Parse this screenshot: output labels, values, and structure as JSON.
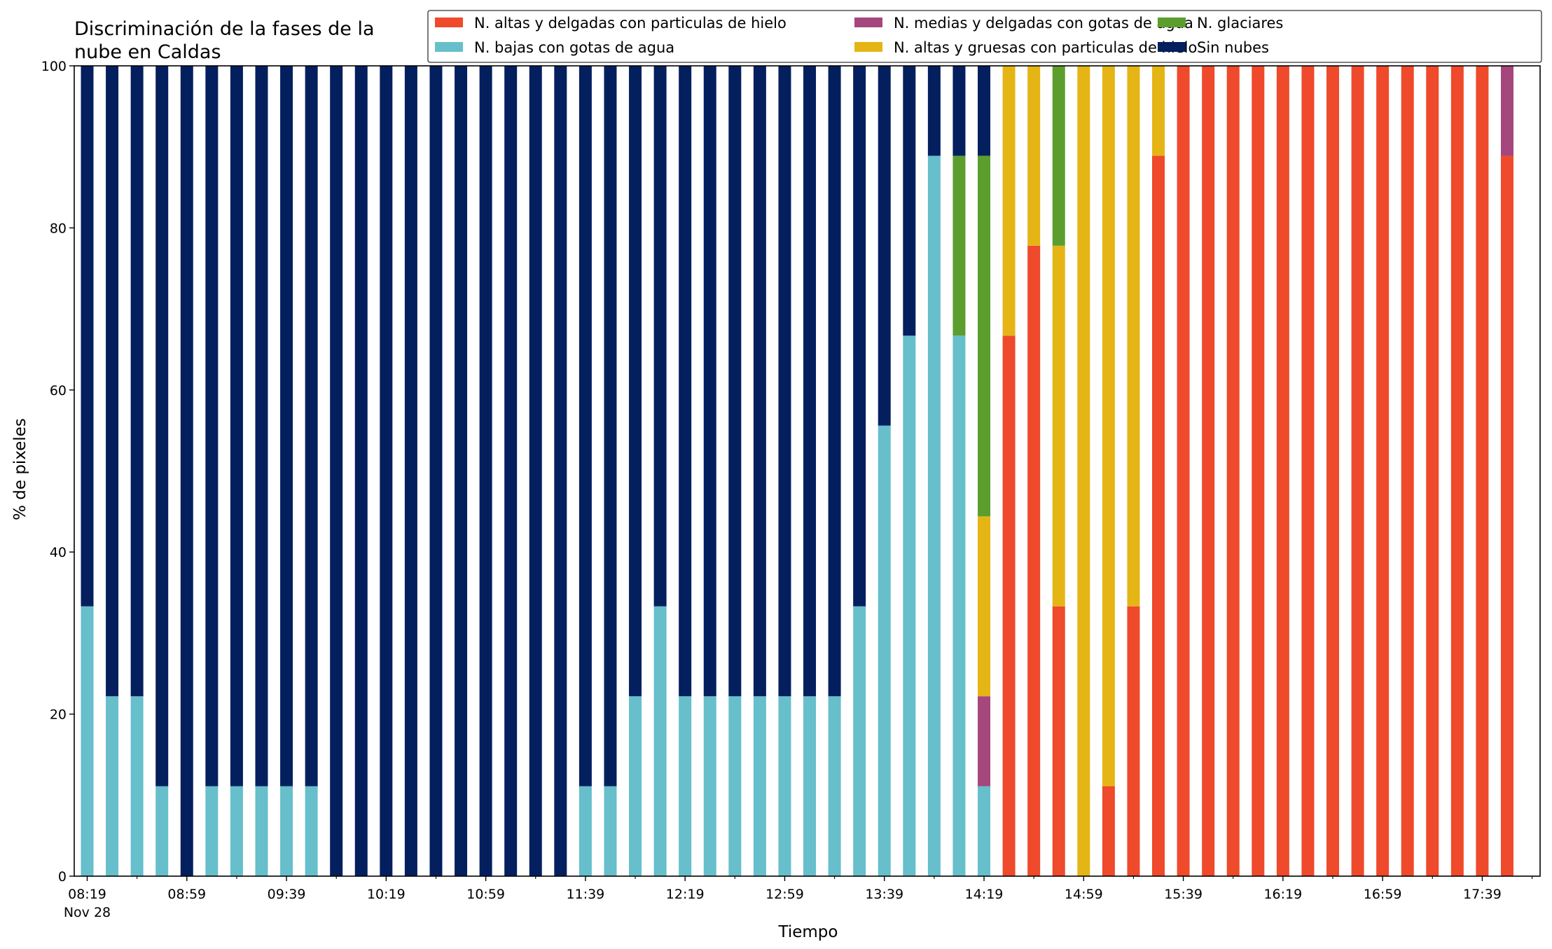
{
  "chart_data": {
    "type": "bar",
    "stacked": true,
    "title_lines": [
      "Discriminación de la fases de la",
      "nube en Caldas"
    ],
    "xlabel": "Tiempo",
    "ylabel": "% de pixeles",
    "ylim": [
      0,
      100
    ],
    "yticks": [
      "0",
      "20",
      "40",
      "60",
      "80",
      "100"
    ],
    "xtick_labels": [
      "08:19",
      "08:59",
      "09:39",
      "10:19",
      "10:59",
      "11:39",
      "12:19",
      "12:59",
      "13:39",
      "14:19",
      "14:59",
      "15:39",
      "16:19",
      "16:59",
      "17:39"
    ],
    "xtick_sublabel": "Nov 28",
    "grid": false,
    "legend_position": "top-right",
    "categories": [
      "08:19",
      "08:29",
      "08:39",
      "08:49",
      "08:59",
      "09:09",
      "09:19",
      "09:29",
      "09:39",
      "09:49",
      "09:59",
      "10:09",
      "10:19",
      "10:29",
      "10:39",
      "10:49",
      "10:59",
      "11:09",
      "11:19",
      "11:29",
      "11:39",
      "11:49",
      "11:59",
      "12:09",
      "12:19",
      "12:29",
      "12:39",
      "12:49",
      "12:59",
      "13:09",
      "13:19",
      "13:29",
      "13:39",
      "13:49",
      "13:59",
      "14:09",
      "14:19",
      "14:29",
      "14:39",
      "14:49",
      "14:59",
      "15:09",
      "15:19",
      "15:29",
      "15:39",
      "15:49",
      "15:59",
      "16:09",
      "16:19",
      "16:29",
      "16:39",
      "16:49",
      "16:59",
      "17:09",
      "17:19",
      "17:29",
      "17:39",
      "17:49"
    ],
    "series": [
      {
        "name": "N. altas y delgadas con particulas de hielo",
        "color": "#ee4a2b",
        "values": [
          0,
          0,
          0,
          0,
          0,
          0,
          0,
          0,
          0,
          0,
          0,
          0,
          0,
          0,
          0,
          0,
          0,
          0,
          0,
          0,
          0,
          0,
          0,
          0,
          0,
          0,
          0,
          0,
          0,
          0,
          0,
          0,
          0,
          0,
          0,
          0,
          0,
          66.7,
          77.8,
          33.3,
          0,
          11.1,
          33.3,
          88.9,
          100,
          100,
          100,
          100,
          100,
          100,
          100,
          100,
          100,
          100,
          100,
          100,
          100,
          88.9
        ]
      },
      {
        "name": "N. bajas con gotas de agua",
        "color": "#66bfcb",
        "values": [
          33.3,
          22.2,
          22.2,
          11.1,
          0,
          11.1,
          11.1,
          11.1,
          11.1,
          11.1,
          0,
          0,
          0,
          0,
          0,
          0,
          0,
          0,
          0,
          0,
          11.1,
          11.1,
          22.2,
          33.3,
          22.2,
          22.2,
          22.2,
          22.2,
          22.2,
          22.2,
          22.2,
          33.3,
          55.6,
          66.7,
          88.9,
          66.7,
          11.1,
          0,
          0,
          0,
          0,
          0,
          0,
          0,
          0,
          0,
          0,
          0,
          0,
          0,
          0,
          0,
          0,
          0,
          0,
          0,
          0,
          0
        ]
      },
      {
        "name": "N. medias y delgadas con gotas de agua",
        "color": "#a5467c",
        "values": [
          0,
          0,
          0,
          0,
          0,
          0,
          0,
          0,
          0,
          0,
          0,
          0,
          0,
          0,
          0,
          0,
          0,
          0,
          0,
          0,
          0,
          0,
          0,
          0,
          0,
          0,
          0,
          0,
          0,
          0,
          0,
          0,
          0,
          0,
          0,
          0,
          11.1,
          0,
          0,
          0,
          0,
          0,
          0,
          0,
          0,
          0,
          0,
          0,
          0,
          0,
          0,
          0,
          0,
          0,
          0,
          0,
          0,
          11.1
        ]
      },
      {
        "name": "N. altas y gruesas con particulas de hielo",
        "color": "#e5b516",
        "values": [
          0,
          0,
          0,
          0,
          0,
          0,
          0,
          0,
          0,
          0,
          0,
          0,
          0,
          0,
          0,
          0,
          0,
          0,
          0,
          0,
          0,
          0,
          0,
          0,
          0,
          0,
          0,
          0,
          0,
          0,
          0,
          0,
          0,
          0,
          0,
          0,
          22.2,
          33.3,
          22.2,
          44.5,
          100,
          88.9,
          66.7,
          11.1,
          0,
          0,
          0,
          0,
          0,
          0,
          0,
          0,
          0,
          0,
          0,
          0,
          0,
          0
        ]
      },
      {
        "name": "N. glaciares",
        "color": "#5c9e2e",
        "values": [
          0,
          0,
          0,
          0,
          0,
          0,
          0,
          0,
          0,
          0,
          0,
          0,
          0,
          0,
          0,
          0,
          0,
          0,
          0,
          0,
          0,
          0,
          0,
          0,
          0,
          0,
          0,
          0,
          0,
          0,
          0,
          0,
          0,
          0,
          0,
          22.2,
          44.5,
          0,
          0,
          22.2,
          0,
          0,
          0,
          0,
          0,
          0,
          0,
          0,
          0,
          0,
          0,
          0,
          0,
          0,
          0,
          0,
          0,
          0
        ]
      },
      {
        "name": "Sin nubes",
        "color": "#041f5e",
        "values": [
          66.7,
          77.8,
          77.8,
          88.9,
          100,
          88.9,
          88.9,
          88.9,
          88.9,
          88.9,
          100,
          100,
          100,
          100,
          100,
          100,
          100,
          100,
          100,
          100,
          88.9,
          88.9,
          77.8,
          66.7,
          77.8,
          77.8,
          77.8,
          77.8,
          77.8,
          77.8,
          77.8,
          66.7,
          44.4,
          33.3,
          11.1,
          11.1,
          11.1,
          0,
          0,
          0,
          0,
          0,
          0,
          0,
          0,
          0,
          0,
          0,
          0,
          0,
          0,
          0,
          0,
          0,
          0,
          0,
          0,
          0
        ]
      }
    ],
    "stack_order": [
      "N. altas y delgadas con particulas de hielo",
      "N. bajas con gotas de agua",
      "N. medias y delgadas con gotas de agua",
      "N. altas y gruesas con particulas de hielo",
      "N. glaciares",
      "Sin nubes"
    ],
    "legend_items": [
      {
        "label": "N. altas y delgadas con particulas de hielo",
        "color": "#ee4a2b"
      },
      {
        "label": "N. bajas con gotas de agua",
        "color": "#66bfcb"
      },
      {
        "label": "N. medias y delgadas con gotas de agua",
        "color": "#a5467c"
      },
      {
        "label": "N. altas y gruesas con particulas de hielo",
        "color": "#e5b516"
      },
      {
        "label": "N. glaciares",
        "color": "#5c9e2e"
      },
      {
        "label": "Sin nubes",
        "color": "#041f5e"
      }
    ]
  }
}
